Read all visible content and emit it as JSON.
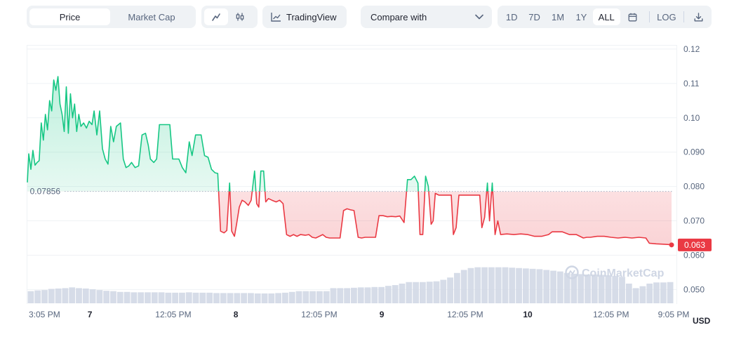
{
  "toolbar": {
    "price_label": "Price",
    "market_cap_label": "Market Cap",
    "tradingview_label": "TradingView",
    "compare_label": "Compare with",
    "ranges": [
      "1D",
      "7D",
      "1M",
      "1Y",
      "ALL"
    ],
    "active_range": "ALL",
    "log_label": "LOG",
    "icons": [
      "line-chart-icon",
      "candlestick-icon",
      "tradingview-icon",
      "chevron-down-icon",
      "calendar-icon",
      "download-icon"
    ]
  },
  "watermark": "CoinMarketCap",
  "currency_label": "USD",
  "colors": {
    "up": "#16c784",
    "down": "#ea3943",
    "volume": "#cfd6e4"
  },
  "chart_data": {
    "type": "area",
    "ylabel": "USD",
    "ylim": [
      0.046,
      0.121
    ],
    "yticks": [
      "0.050",
      "0.060",
      "0.070",
      "0.080",
      "0.090",
      "0.10",
      "0.11",
      "0.12"
    ],
    "ytick_values": [
      0.05,
      0.06,
      0.07,
      0.08,
      0.09,
      0.1,
      0.11,
      0.12
    ],
    "xlim": [
      0,
      93
    ],
    "xticks": [
      {
        "t": 0.2,
        "label": "3:05 PM",
        "bold": false
      },
      {
        "t": 9,
        "label": "7",
        "bold": true
      },
      {
        "t": 21,
        "label": "12:05 PM",
        "bold": false
      },
      {
        "t": 30,
        "label": "8",
        "bold": true
      },
      {
        "t": 42,
        "label": "12:05 PM",
        "bold": false
      },
      {
        "t": 51,
        "label": "9",
        "bold": true
      },
      {
        "t": 63,
        "label": "12:05 PM",
        "bold": false
      },
      {
        "t": 72,
        "label": "10",
        "bold": true
      },
      {
        "t": 84,
        "label": "12:05 PM",
        "bold": false
      },
      {
        "t": 93,
        "label": "9:05 PM",
        "bold": false
      }
    ],
    "reference": {
      "value": 0.07856,
      "label": "0.07856"
    },
    "last": {
      "value": 0.063,
      "label": "0.063"
    },
    "price": [
      [
        0,
        0.0812
      ],
      [
        0.2,
        0.0895
      ],
      [
        0.5,
        0.085
      ],
      [
        0.8,
        0.0905
      ],
      [
        1.1,
        0.0862
      ],
      [
        1.4,
        0.087
      ],
      [
        1.7,
        0.0875
      ],
      [
        2.0,
        0.0985
      ],
      [
        2.3,
        0.0935
      ],
      [
        2.6,
        0.101
      ],
      [
        2.9,
        0.0965
      ],
      [
        3.2,
        0.105
      ],
      [
        3.5,
        0.102
      ],
      [
        3.8,
        0.111
      ],
      [
        4.1,
        0.108
      ],
      [
        4.4,
        0.112
      ],
      [
        4.7,
        0.104
      ],
      [
        5.0,
        0.101
      ],
      [
        5.3,
        0.096
      ],
      [
        5.6,
        0.109
      ],
      [
        5.9,
        0.0955
      ],
      [
        6.2,
        0.107
      ],
      [
        6.5,
        0.1
      ],
      [
        6.8,
        0.104
      ],
      [
        7.1,
        0.096
      ],
      [
        7.4,
        0.101
      ],
      [
        7.7,
        0.0975
      ],
      [
        8.1,
        0.0985
      ],
      [
        8.5,
        0.097
      ],
      [
        8.9,
        0.099
      ],
      [
        9.3,
        0.098
      ],
      [
        9.6,
        0.102
      ],
      [
        10.0,
        0.095
      ],
      [
        10.4,
        0.102
      ],
      [
        10.8,
        0.091
      ],
      [
        11.2,
        0.088
      ],
      [
        11.6,
        0.0865
      ],
      [
        12.0,
        0.0975
      ],
      [
        12.4,
        0.093
      ],
      [
        12.8,
        0.0975
      ],
      [
        13.4,
        0.0985
      ],
      [
        13.8,
        0.088
      ],
      [
        14.2,
        0.0855
      ],
      [
        14.6,
        0.086
      ],
      [
        15.0,
        0.087
      ],
      [
        15.5,
        0.0855
      ],
      [
        16.0,
        0.086
      ],
      [
        16.5,
        0.095
      ],
      [
        17.0,
        0.0955
      ],
      [
        17.4,
        0.092
      ],
      [
        17.7,
        0.088
      ],
      [
        18.2,
        0.087
      ],
      [
        18.6,
        0.088
      ],
      [
        19.0,
        0.098
      ],
      [
        19.5,
        0.098
      ],
      [
        20.5,
        0.098
      ],
      [
        20.9,
        0.088
      ],
      [
        21.3,
        0.088
      ],
      [
        21.8,
        0.088
      ],
      [
        22.3,
        0.0855
      ],
      [
        22.8,
        0.084
      ],
      [
        23.3,
        0.093
      ],
      [
        23.7,
        0.089
      ],
      [
        24.2,
        0.095
      ],
      [
        25.0,
        0.095
      ],
      [
        25.5,
        0.089
      ],
      [
        26.0,
        0.0885
      ],
      [
        26.5,
        0.085
      ],
      [
        27.0,
        0.084
      ],
      [
        27.4,
        0.0838
      ],
      [
        27.8,
        0.067
      ],
      [
        28.3,
        0.0665
      ],
      [
        28.7,
        0.0672
      ],
      [
        29.1,
        0.081
      ],
      [
        29.4,
        0.067
      ],
      [
        29.8,
        0.0655
      ],
      [
        30.1,
        0.069
      ],
      [
        30.5,
        0.074
      ],
      [
        30.9,
        0.076
      ],
      [
        31.3,
        0.0755
      ],
      [
        31.8,
        0.0745
      ],
      [
        32.2,
        0.076
      ],
      [
        32.7,
        0.0845
      ],
      [
        33.0,
        0.075
      ],
      [
        33.3,
        0.074
      ],
      [
        33.6,
        0.0845
      ],
      [
        34.0,
        0.0845
      ],
      [
        34.3,
        0.0755
      ],
      [
        34.7,
        0.0765
      ],
      [
        35.2,
        0.076
      ],
      [
        35.8,
        0.0755
      ],
      [
        36.3,
        0.076
      ],
      [
        36.8,
        0.075
      ],
      [
        37.3,
        0.066
      ],
      [
        37.8,
        0.0655
      ],
      [
        38.3,
        0.066
      ],
      [
        38.8,
        0.0655
      ],
      [
        39.3,
        0.066
      ],
      [
        40.0,
        0.0658
      ],
      [
        40.5,
        0.066
      ],
      [
        41.0,
        0.0652
      ],
      [
        41.5,
        0.065
      ],
      [
        42.0,
        0.0655
      ],
      [
        42.5,
        0.066
      ],
      [
        43.0,
        0.0652
      ],
      [
        43.5,
        0.065
      ],
      [
        44.0,
        0.065
      ],
      [
        44.5,
        0.065
      ],
      [
        45.0,
        0.065
      ],
      [
        45.5,
        0.073
      ],
      [
        46.0,
        0.0735
      ],
      [
        46.5,
        0.0732
      ],
      [
        47.0,
        0.073
      ],
      [
        47.6,
        0.0652
      ],
      [
        48.1,
        0.065
      ],
      [
        48.6,
        0.0652
      ],
      [
        49.1,
        0.0652
      ],
      [
        49.6,
        0.0652
      ],
      [
        50.1,
        0.0652
      ],
      [
        50.6,
        0.0715
      ],
      [
        51.2,
        0.0715
      ],
      [
        51.8,
        0.0712
      ],
      [
        52.4,
        0.0713
      ],
      [
        53.0,
        0.0712
      ],
      [
        53.6,
        0.0714
      ],
      [
        54.2,
        0.0695
      ],
      [
        54.7,
        0.082
      ],
      [
        55.2,
        0.082
      ],
      [
        55.7,
        0.083
      ],
      [
        56.2,
        0.081
      ],
      [
        56.5,
        0.066
      ],
      [
        56.9,
        0.066
      ],
      [
        57.3,
        0.083
      ],
      [
        57.7,
        0.08
      ],
      [
        58.1,
        0.069
      ],
      [
        58.4,
        0.07
      ],
      [
        58.7,
        0.078
      ],
      [
        59.2,
        0.0775
      ],
      [
        60.5,
        0.0775
      ],
      [
        61.0,
        0.0775
      ],
      [
        61.3,
        0.066
      ],
      [
        61.7,
        0.068
      ],
      [
        62.1,
        0.0775
      ],
      [
        62.6,
        0.0775
      ],
      [
        63.5,
        0.0775
      ],
      [
        64.5,
        0.0775
      ],
      [
        65.1,
        0.0775
      ],
      [
        65.4,
        0.068
      ],
      [
        65.8,
        0.071
      ],
      [
        66.2,
        0.081
      ],
      [
        66.5,
        0.07
      ],
      [
        66.9,
        0.081
      ],
      [
        67.3,
        0.066
      ],
      [
        67.7,
        0.07
      ],
      [
        68.1,
        0.066
      ],
      [
        69.0,
        0.0662
      ],
      [
        70.0,
        0.066
      ],
      [
        71.0,
        0.0662
      ],
      [
        72.0,
        0.066
      ],
      [
        73.0,
        0.0655
      ],
      [
        74.0,
        0.0655
      ],
      [
        75.0,
        0.066
      ],
      [
        75.5,
        0.0668
      ],
      [
        76.0,
        0.0668
      ],
      [
        77.0,
        0.0668
      ],
      [
        78.0,
        0.066
      ],
      [
        79.0,
        0.066
      ],
      [
        80.0,
        0.065
      ],
      [
        80.5,
        0.0652
      ],
      [
        81.0,
        0.0652
      ],
      [
        82.0,
        0.0655
      ],
      [
        83.0,
        0.0655
      ],
      [
        84.0,
        0.0652
      ],
      [
        85.0,
        0.065
      ],
      [
        86.0,
        0.0652
      ],
      [
        87.0,
        0.065
      ],
      [
        88.0,
        0.0652
      ],
      [
        89.0,
        0.065
      ],
      [
        89.5,
        0.0635
      ],
      [
        90.5,
        0.0633
      ],
      [
        91.5,
        0.0632
      ],
      [
        92.3,
        0.0631
      ],
      [
        92.7,
        0.063
      ]
    ],
    "volume": [
      0.32,
      0.34,
      0.35,
      0.38,
      0.39,
      0.4,
      0.42,
      0.4,
      0.39,
      0.37,
      0.35,
      0.33,
      0.32,
      0.3,
      0.3,
      0.29,
      0.29,
      0.29,
      0.29,
      0.29,
      0.28,
      0.28,
      0.28,
      0.29,
      0.28,
      0.28,
      0.28,
      0.27,
      0.27,
      0.27,
      0.27,
      0.27,
      0.27,
      0.26,
      0.26,
      0.26,
      0.27,
      0.28,
      0.3,
      0.32,
      0.32,
      0.32,
      0.32,
      0.32,
      0.4,
      0.4,
      0.4,
      0.41,
      0.42,
      0.42,
      0.43,
      0.43,
      0.46,
      0.48,
      0.52,
      0.56,
      0.56,
      0.56,
      0.57,
      0.58,
      0.62,
      0.68,
      0.8,
      0.88,
      0.93,
      0.95,
      0.95,
      0.95,
      0.95,
      0.95,
      0.94,
      0.93,
      0.92,
      0.91,
      0.9,
      0.88,
      0.86,
      0.84,
      0.8,
      0.78,
      0.77,
      0.76,
      0.76,
      0.75,
      0.74,
      0.72,
      0.7,
      0.52,
      0.4,
      0.45,
      0.52,
      0.55,
      0.55,
      0.56
    ]
  }
}
